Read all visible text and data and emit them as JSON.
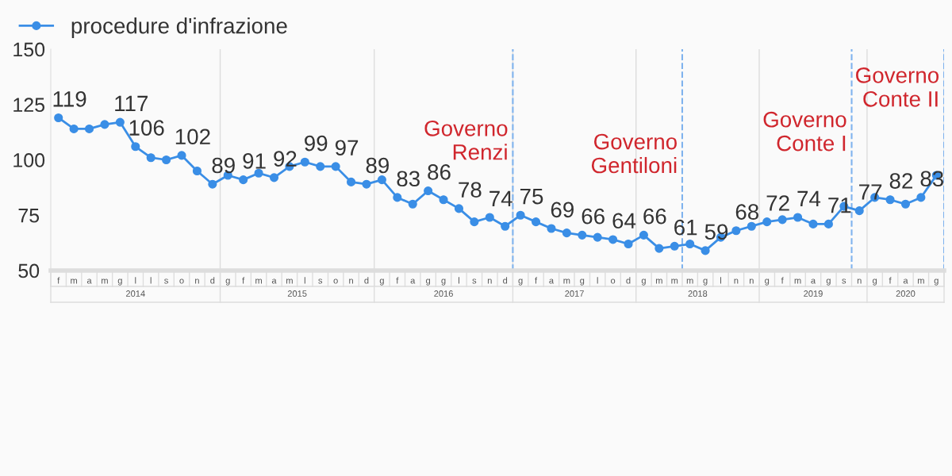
{
  "chart_data": {
    "type": "line",
    "categories": [
      "f",
      "m",
      "a",
      "m",
      "g",
      "l",
      "l",
      "s",
      "o",
      "n",
      "d",
      "g",
      "f",
      "m",
      "a",
      "m",
      "l",
      "s",
      "o",
      "n",
      "d",
      "g",
      "f",
      "a",
      "g",
      "g",
      "l",
      "s",
      "n",
      "d",
      "g",
      "f",
      "a",
      "m",
      "g",
      "l",
      "o",
      "d",
      "g",
      "m",
      "m",
      "m",
      "g",
      "l",
      "n",
      "n",
      "g",
      "f",
      "m",
      "a",
      "g",
      "s",
      "n",
      "g",
      "f",
      "a",
      "m",
      "g"
    ],
    "series": [
      {
        "name": "procedure d'infrazione",
        "color": "#3a8ee6",
        "values": [
          119,
          114,
          114,
          116,
          117,
          106,
          101,
          100,
          102,
          95,
          89,
          93,
          91,
          94,
          92,
          97,
          99,
          97,
          97,
          90,
          89,
          91,
          83,
          80,
          86,
          82,
          78,
          72,
          74,
          70,
          75,
          72,
          69,
          67,
          66,
          65,
          64,
          62,
          66,
          60,
          61,
          62,
          59,
          65,
          68,
          70,
          72,
          73,
          74,
          71,
          71,
          79,
          77,
          83,
          82,
          80,
          83,
          93
        ],
        "value_labels": [
          "119",
          null,
          null,
          null,
          "117",
          "106",
          null,
          null,
          "102",
          null,
          "89",
          null,
          "91",
          null,
          "92",
          null,
          "99",
          null,
          "97",
          null,
          "89",
          null,
          "83",
          null,
          "86",
          null,
          "78",
          null,
          "74",
          null,
          "75",
          null,
          "69",
          null,
          "66",
          null,
          "64",
          null,
          "66",
          null,
          "61",
          null,
          "59",
          null,
          "68",
          null,
          "72",
          null,
          "74",
          null,
          "71",
          null,
          "77",
          null,
          "82",
          null,
          "83",
          null
        ]
      }
    ],
    "ylim": [
      50,
      150
    ],
    "yticks": [
      50,
      75,
      100,
      125,
      150
    ],
    "annotations": [
      "2014",
      "2015",
      "2016",
      "2017",
      "2018",
      "2019",
      "2020",
      "Governo\nRenzi",
      "Governo\nGentiloni",
      "Governo\nConte I",
      "Governo\nConte II"
    ],
    "marker": "circle",
    "line_style": "solid",
    "legend": "top left",
    "grid": false
  }
}
